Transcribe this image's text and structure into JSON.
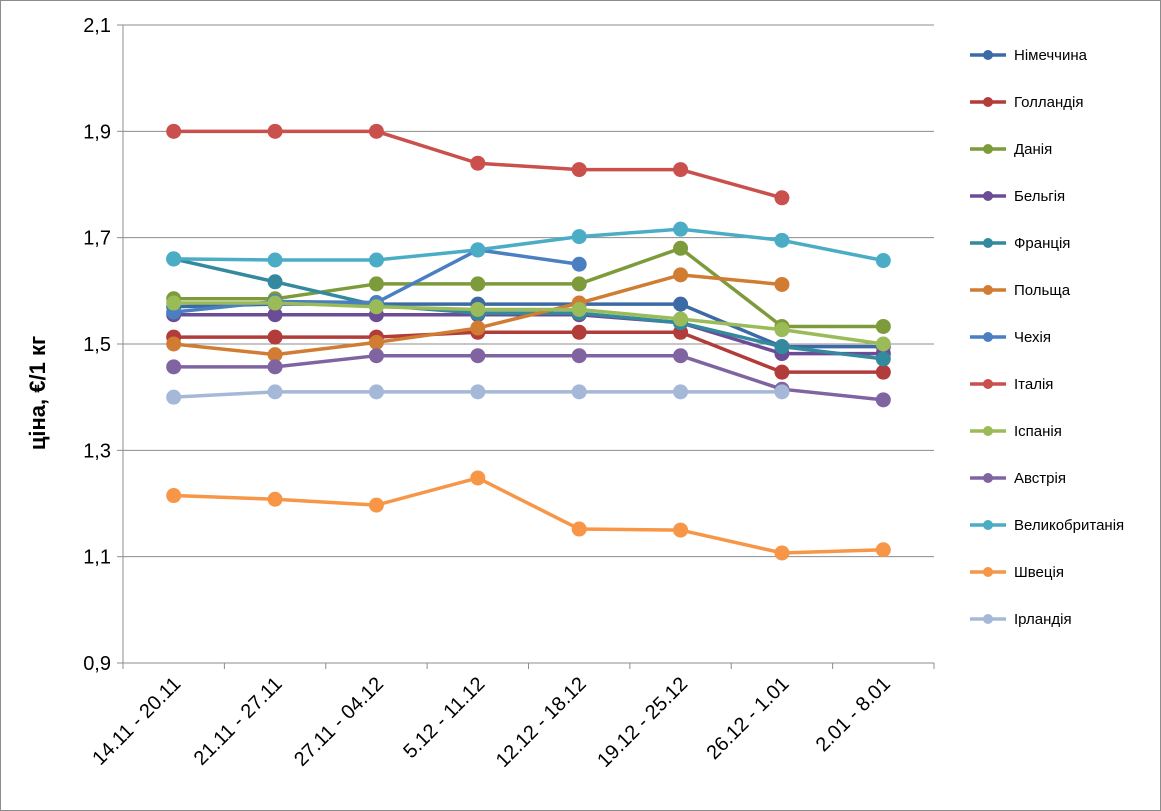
{
  "chart_data": {
    "type": "line",
    "title": "",
    "xlabel": "",
    "ylabel": "ціна, €/1 кг",
    "ylim": [
      0.9,
      2.1
    ],
    "yticks": [
      0.9,
      1.1,
      1.3,
      1.5,
      1.7,
      1.9,
      2.1
    ],
    "ytick_labels": [
      "0,9",
      "1,1",
      "1,3",
      "1,5",
      "1,7",
      "1,9",
      "2,1"
    ],
    "grid": true,
    "legend_position": "right",
    "categories": [
      "14.11 - 20.11",
      "21.11 - 27.11",
      "27.11 - 04.12",
      "5.12 - 11.12",
      "12.12 - 18.12",
      "19.12 - 25.12",
      "26.12 - 1.01",
      "2.01 - 8.01"
    ],
    "series": [
      {
        "name": "Німеччина",
        "color": "#3c6aa5",
        "values": [
          1.57,
          1.575,
          1.575,
          1.575,
          1.575,
          1.575,
          1.495,
          1.495
        ]
      },
      {
        "name": "Голландія",
        "color": "#b13c39",
        "values": [
          1.513,
          1.513,
          1.513,
          1.522,
          1.522,
          1.522,
          1.447,
          1.447
        ]
      },
      {
        "name": "Данія",
        "color": "#7e9b3b",
        "values": [
          1.585,
          1.585,
          1.613,
          1.613,
          1.613,
          1.68,
          1.533,
          1.533
        ]
      },
      {
        "name": "Бельгія",
        "color": "#6b4c95",
        "values": [
          1.555,
          1.555,
          1.555,
          1.555,
          1.555,
          1.54,
          1.482,
          1.482
        ]
      },
      {
        "name": "Франція",
        "color": "#33899e",
        "values": [
          1.66,
          1.617,
          1.573,
          1.558,
          1.558,
          1.54,
          1.495,
          1.472
        ]
      },
      {
        "name": "Польща",
        "color": "#d07c33",
        "values": [
          1.5,
          1.48,
          1.503,
          1.53,
          1.577,
          1.63,
          1.612,
          null
        ]
      },
      {
        "name": "Чехія",
        "color": "#4a7fc1",
        "values": [
          1.56,
          1.58,
          1.578,
          1.677,
          1.65,
          null,
          null,
          null
        ]
      },
      {
        "name": "Італія",
        "color": "#c9504d",
        "values": [
          1.9,
          1.9,
          1.9,
          1.84,
          1.828,
          1.828,
          1.775,
          null
        ]
      },
      {
        "name": "Іспанія",
        "color": "#9bbb59",
        "values": [
          1.577,
          1.577,
          1.57,
          1.565,
          1.565,
          1.547,
          1.527,
          1.5
        ]
      },
      {
        "name": "Австрія",
        "color": "#8064a2",
        "values": [
          1.457,
          1.457,
          1.478,
          1.478,
          1.478,
          1.478,
          1.415,
          1.395
        ]
      },
      {
        "name": "Великобританія",
        "color": "#4bacc6",
        "values": [
          1.66,
          1.658,
          1.658,
          1.677,
          1.702,
          1.716,
          1.695,
          1.657
        ]
      },
      {
        "name": "Швеція",
        "color": "#f79646",
        "values": [
          1.215,
          1.208,
          1.197,
          1.248,
          1.152,
          1.15,
          1.107,
          1.113
        ]
      },
      {
        "name": "Ірландія",
        "color": "#a5b8d8",
        "values": [
          1.4,
          1.41,
          1.41,
          1.41,
          1.41,
          1.41,
          1.41,
          null
        ]
      }
    ]
  }
}
